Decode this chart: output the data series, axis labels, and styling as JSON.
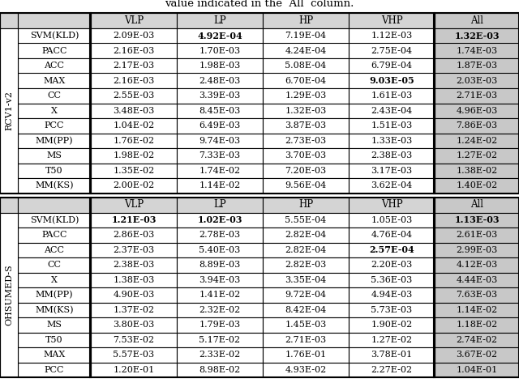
{
  "title_text": "value indicated in the  All  column.",
  "section1_label": "RCV1-v2",
  "section2_label": "OHSUMED-S",
  "section1_rows": [
    [
      "SVM(KLD)",
      "2.09E-03",
      "4.92E-04",
      "7.19E-04",
      "1.12E-03",
      "1.32E-03"
    ],
    [
      "PACC",
      "2.16E-03",
      "1.70E-03",
      "4.24E-04",
      "2.75E-04",
      "1.74E-03"
    ],
    [
      "ACC",
      "2.17E-03",
      "1.98E-03",
      "5.08E-04",
      "6.79E-04",
      "1.87E-03"
    ],
    [
      "MAX",
      "2.16E-03",
      "2.48E-03",
      "6.70E-04",
      "9.03E-05",
      "2.03E-03"
    ],
    [
      "CC",
      "2.55E-03",
      "3.39E-03",
      "1.29E-03",
      "1.61E-03",
      "2.71E-03"
    ],
    [
      "X",
      "3.48E-03",
      "8.45E-03",
      "1.32E-03",
      "2.43E-04",
      "4.96E-03"
    ],
    [
      "PCC",
      "1.04E-02",
      "6.49E-03",
      "3.87E-03",
      "1.51E-03",
      "7.86E-03"
    ],
    [
      "MM(PP)",
      "1.76E-02",
      "9.74E-03",
      "2.73E-03",
      "1.33E-03",
      "1.24E-02"
    ],
    [
      "MS",
      "1.98E-02",
      "7.33E-03",
      "3.70E-03",
      "2.38E-03",
      "1.27E-02"
    ],
    [
      "T50",
      "1.35E-02",
      "1.74E-02",
      "7.20E-03",
      "3.17E-03",
      "1.38E-02"
    ],
    [
      "MM(KS)",
      "2.00E-02",
      "1.14E-02",
      "9.56E-04",
      "3.62E-04",
      "1.40E-02"
    ]
  ],
  "section1_bold": [
    [
      false,
      true,
      false,
      false,
      true
    ],
    [
      false,
      false,
      false,
      false,
      false
    ],
    [
      false,
      false,
      false,
      false,
      false
    ],
    [
      false,
      false,
      false,
      true,
      false
    ],
    [
      false,
      false,
      false,
      false,
      false
    ],
    [
      false,
      false,
      false,
      false,
      false
    ],
    [
      false,
      false,
      false,
      false,
      false
    ],
    [
      false,
      false,
      false,
      false,
      false
    ],
    [
      false,
      false,
      false,
      false,
      false
    ],
    [
      false,
      false,
      false,
      false,
      false
    ],
    [
      false,
      false,
      false,
      false,
      false
    ]
  ],
  "section2_rows": [
    [
      "SVM(KLD)",
      "1.21E-03",
      "1.02E-03",
      "5.55E-04",
      "1.05E-03",
      "1.13E-03"
    ],
    [
      "PACC",
      "2.86E-03",
      "2.78E-03",
      "2.82E-04",
      "4.76E-04",
      "2.61E-03"
    ],
    [
      "ACC",
      "2.37E-03",
      "5.40E-03",
      "2.82E-04",
      "2.57E-04",
      "2.99E-03"
    ],
    [
      "CC",
      "2.38E-03",
      "8.89E-03",
      "2.82E-03",
      "2.20E-03",
      "4.12E-03"
    ],
    [
      "X",
      "1.38E-03",
      "3.94E-03",
      "3.35E-04",
      "5.36E-03",
      "4.44E-03"
    ],
    [
      "MM(PP)",
      "4.90E-03",
      "1.41E-02",
      "9.72E-04",
      "4.94E-03",
      "7.63E-03"
    ],
    [
      "MM(KS)",
      "1.37E-02",
      "2.32E-02",
      "8.42E-04",
      "5.73E-03",
      "1.14E-02"
    ],
    [
      "MS",
      "3.80E-03",
      "1.79E-03",
      "1.45E-03",
      "1.90E-02",
      "1.18E-02"
    ],
    [
      "T50",
      "7.53E-02",
      "5.17E-02",
      "2.71E-03",
      "1.27E-02",
      "2.74E-02"
    ],
    [
      "MAX",
      "5.57E-03",
      "2.33E-02",
      "1.76E-01",
      "3.78E-01",
      "3.67E-02"
    ],
    [
      "PCC",
      "1.20E-01",
      "8.98E-02",
      "4.93E-02",
      "2.27E-02",
      "1.04E-01"
    ]
  ],
  "section2_bold": [
    [
      true,
      true,
      false,
      false,
      true
    ],
    [
      false,
      false,
      false,
      false,
      false
    ],
    [
      false,
      false,
      false,
      true,
      false
    ],
    [
      false,
      false,
      false,
      false,
      false
    ],
    [
      false,
      false,
      false,
      false,
      false
    ],
    [
      false,
      false,
      false,
      false,
      false
    ],
    [
      false,
      false,
      false,
      false,
      false
    ],
    [
      false,
      false,
      false,
      false,
      false
    ],
    [
      false,
      false,
      false,
      false,
      false
    ],
    [
      false,
      false,
      false,
      false,
      false
    ],
    [
      false,
      false,
      false,
      false,
      false
    ]
  ],
  "col_headers": [
    "VLP",
    "LP",
    "HP",
    "VHP",
    "All"
  ],
  "bg_color": "#ffffff",
  "header_bg": "#d4d4d4",
  "all_col_bg": "#c8c8c8",
  "data_bg": "#ffffff",
  "font_size": 8.0,
  "header_font_size": 8.5
}
